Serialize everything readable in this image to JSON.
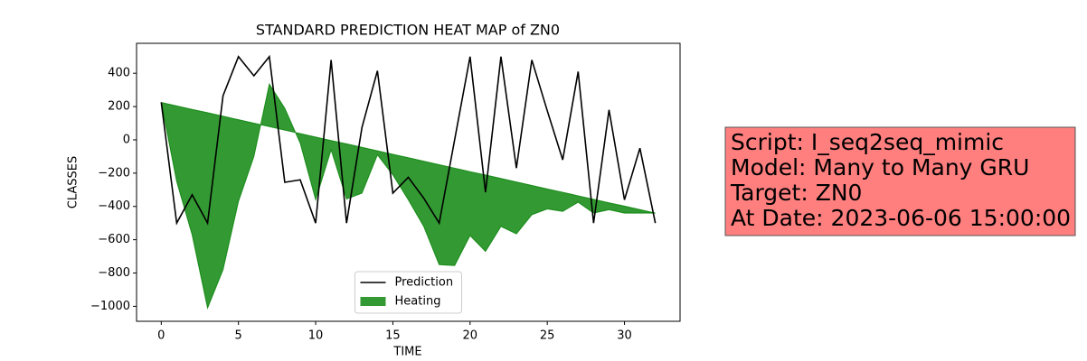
{
  "chart_data": {
    "type": "line",
    "title": "STANDARD PREDICTION HEAT MAP of ZN0",
    "x_label": "TIME",
    "y_label": "CLASSES",
    "x": [
      0,
      1,
      2,
      3,
      4,
      5,
      6,
      7,
      8,
      9,
      10,
      11,
      12,
      13,
      14,
      15,
      16,
      17,
      18,
      19,
      20,
      21,
      22,
      23,
      24,
      25,
      26,
      27,
      28,
      29,
      30,
      31,
      32
    ],
    "series": [
      {
        "name": "Prediction",
        "color": "#000000",
        "kind": "line",
        "values": [
          225,
          -500,
          -330,
          -500,
          265,
          500,
          385,
          500,
          -255,
          -240,
          -500,
          480,
          -500,
          75,
          415,
          -320,
          -225,
          -350,
          -500,
          0,
          500,
          -315,
          500,
          -170,
          480,
          175,
          -120,
          410,
          -500,
          180,
          -360,
          -50,
          -500
        ]
      },
      {
        "name": "Heating",
        "color": "#008000",
        "alpha": 0.8,
        "kind": "fill_between",
        "values": [
          225,
          -250,
          -570,
          -1010,
          -780,
          -370,
          -100,
          335,
          190,
          -20,
          -360,
          -60,
          -355,
          -320,
          -90,
          -210,
          -360,
          -520,
          -750,
          -755,
          -575,
          -670,
          -520,
          -565,
          -450,
          -415,
          -430,
          -375,
          -440,
          -420,
          -440,
          -440,
          -440
        ],
        "baseline": [
          225,
          204,
          183,
          163,
          142,
          121,
          100,
          80,
          59,
          38,
          17,
          -4,
          -24,
          -45,
          -66,
          -87,
          -107,
          -128,
          -149,
          -170,
          -191,
          -211,
          -232,
          -253,
          -274,
          -295,
          -315,
          -336,
          -357,
          -378,
          -398,
          -419,
          -440
        ]
      }
    ],
    "xlim": [
      -1.6,
      33.6
    ],
    "ylim": [
      -1090,
      580
    ],
    "xticks": [
      0,
      5,
      10,
      15,
      20,
      25,
      30
    ],
    "yticks": [
      {
        "value": -1000,
        "label": "−1000"
      },
      {
        "value": -800,
        "label": "−800"
      },
      {
        "value": -600,
        "label": "−600"
      },
      {
        "value": -400,
        "label": "−400"
      },
      {
        "value": -200,
        "label": "−200"
      },
      0,
      200,
      400
    ],
    "legend": "lower center",
    "annotation_lines": [
      "Script: I_seq2seq_mimic",
      "Model: Many to Many GRU",
      "Target: ZN0",
      "At Date: 2023-06-06 15:00:00"
    ],
    "annotation_color": "#ff7f7f"
  }
}
